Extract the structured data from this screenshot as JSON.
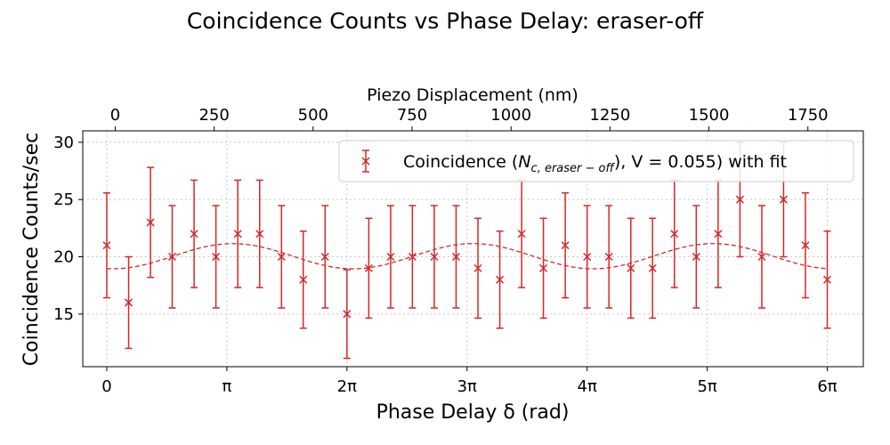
{
  "chart_data": {
    "type": "scatter",
    "title": "Coincidence Counts vs Phase Delay: eraser-off",
    "xlabel": "Phase Delay δ (rad)",
    "ylabel": "Coincidence Counts/sec",
    "top_xlabel": "Piezo Displacement (nm)",
    "xlim_pi": [
      -0.2,
      6.3
    ],
    "ylim": [
      10.4,
      31.0
    ],
    "yticks": [
      15,
      20,
      25,
      30
    ],
    "xticks": [
      {
        "value_pi": 0,
        "label": "0"
      },
      {
        "value_pi": 1,
        "label": "π"
      },
      {
        "value_pi": 2,
        "label": "2π"
      },
      {
        "value_pi": 3,
        "label": "3π"
      },
      {
        "value_pi": 4,
        "label": "4π"
      },
      {
        "value_pi": 5,
        "label": "5π"
      },
      {
        "value_pi": 6,
        "label": "6π"
      }
    ],
    "top_xticks": [
      0,
      250,
      500,
      750,
      1000,
      1250,
      1500,
      1750
    ],
    "top_xlim": [
      -82,
      1890
    ],
    "grid": true,
    "legend": {
      "placement": "top-right",
      "label_prefix": "Coincidence (",
      "label_sym": "N",
      "label_sub": "c, eraser − off",
      "label_suffix": "), V = 0.055) with fit"
    },
    "series": [
      {
        "name": "Coincidence (N_c,eraser-off), V = 0.055) with fit",
        "color": "#d62728",
        "marker": "x",
        "x_pi": [
          0,
          0.182,
          0.364,
          0.545,
          0.727,
          0.909,
          1.091,
          1.273,
          1.455,
          1.636,
          1.818,
          2.0,
          2.182,
          2.364,
          2.545,
          2.727,
          2.909,
          3.091,
          3.273,
          3.455,
          3.636,
          3.818,
          4.0,
          4.182,
          4.364,
          4.545,
          4.727,
          4.909,
          5.091,
          5.273,
          5.455,
          5.636,
          5.818,
          6.0
        ],
        "y": [
          21,
          16,
          23,
          20,
          22,
          20,
          22,
          22,
          20,
          18,
          20,
          15,
          19,
          20,
          20,
          20,
          20,
          19,
          18,
          22,
          19,
          21,
          20,
          20,
          19,
          19,
          22,
          20,
          22,
          25,
          20,
          25,
          21,
          18
        ],
        "yerr": [
          4.58,
          4.0,
          4.8,
          4.47,
          4.69,
          4.47,
          4.69,
          4.69,
          4.47,
          4.24,
          4.47,
          3.87,
          4.36,
          4.47,
          4.47,
          4.47,
          4.47,
          4.36,
          4.24,
          4.69,
          4.36,
          4.58,
          4.47,
          4.47,
          4.36,
          4.36,
          4.69,
          4.47,
          4.69,
          5.0,
          4.47,
          5.0,
          4.58,
          4.24
        ]
      }
    ],
    "fit": {
      "style": "dashed",
      "color": "#d62728",
      "mean": 20.05,
      "amplitude": 1.1,
      "period_pi": 2.0,
      "phase_pi": 0.05
    }
  }
}
